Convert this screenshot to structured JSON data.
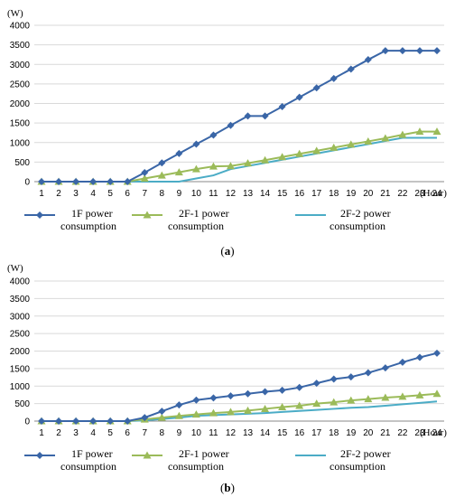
{
  "chart_data": [
    {
      "type": "line",
      "panel_label": "a",
      "ylabel": "(W)",
      "xlabel": "(Hour)",
      "x": [
        1,
        2,
        3,
        4,
        5,
        6,
        7,
        8,
        9,
        10,
        11,
        12,
        13,
        14,
        15,
        16,
        17,
        18,
        19,
        20,
        21,
        22,
        23,
        24
      ],
      "ylim": [
        0,
        4000
      ],
      "yticks": [
        0,
        500,
        1000,
        1500,
        2000,
        2500,
        3000,
        3500,
        4000
      ],
      "grid": true,
      "legend_position": "bottom",
      "series": [
        {
          "name": "1F power consumption",
          "legend_lines": [
            "1F power",
            "consumption"
          ],
          "marker": "diamond",
          "color": "#3a66a7",
          "values": [
            0,
            0,
            0,
            0,
            0,
            0,
            230,
            480,
            720,
            960,
            1190,
            1440,
            1680,
            1680,
            1920,
            2160,
            2400,
            2640,
            2880,
            3120,
            3350,
            3350,
            3350,
            3350
          ]
        },
        {
          "name": "2F-1 power consumption",
          "legend_lines": [
            "2F-1 power",
            "consumption"
          ],
          "marker": "triangle",
          "color": "#9bbb59",
          "values": [
            0,
            0,
            0,
            0,
            0,
            0,
            80,
            160,
            240,
            320,
            390,
            400,
            470,
            550,
            630,
            710,
            790,
            870,
            950,
            1030,
            1110,
            1200,
            1280,
            1280
          ]
        },
        {
          "name": "2F-2 power consumption",
          "legend_lines": [
            "2F-2 power",
            "consumption"
          ],
          "marker": "none",
          "color": "#4bacc6",
          "values": [
            0,
            0,
            0,
            0,
            0,
            0,
            0,
            0,
            0,
            80,
            160,
            320,
            400,
            480,
            560,
            640,
            720,
            800,
            880,
            960,
            1040,
            1120,
            1120,
            1120
          ]
        }
      ]
    },
    {
      "type": "line",
      "panel_label": "b",
      "ylabel": "(W)",
      "xlabel": "(Hour)",
      "x": [
        1,
        2,
        3,
        4,
        5,
        6,
        7,
        8,
        9,
        10,
        11,
        12,
        13,
        14,
        15,
        16,
        17,
        18,
        19,
        20,
        21,
        22,
        23,
        24
      ],
      "ylim": [
        0,
        4000
      ],
      "yticks": [
        0,
        500,
        1000,
        1500,
        2000,
        2500,
        3000,
        3500,
        4000
      ],
      "grid": true,
      "legend_position": "bottom",
      "series": [
        {
          "name": "1F power consumption",
          "legend_lines": [
            "1F power",
            "consumption"
          ],
          "marker": "diamond",
          "color": "#3a66a7",
          "values": [
            0,
            0,
            0,
            0,
            0,
            0,
            100,
            280,
            460,
            600,
            660,
            720,
            780,
            840,
            880,
            960,
            1080,
            1200,
            1260,
            1380,
            1520,
            1680,
            1820,
            1940
          ]
        },
        {
          "name": "2F-1 power consumption",
          "legend_lines": [
            "2F-1 power",
            "consumption"
          ],
          "marker": "triangle",
          "color": "#9bbb59",
          "values": [
            0,
            0,
            0,
            0,
            0,
            0,
            50,
            100,
            150,
            190,
            230,
            260,
            300,
            350,
            400,
            440,
            500,
            540,
            590,
            630,
            670,
            700,
            740,
            780
          ]
        },
        {
          "name": "2F-2 power consumption",
          "legend_lines": [
            "2F-2 power",
            "consumption"
          ],
          "marker": "none",
          "color": "#4bacc6",
          "values": [
            0,
            0,
            0,
            0,
            0,
            0,
            20,
            60,
            100,
            150,
            170,
            190,
            210,
            230,
            260,
            290,
            320,
            350,
            380,
            400,
            440,
            480,
            520,
            560
          ]
        }
      ]
    }
  ]
}
